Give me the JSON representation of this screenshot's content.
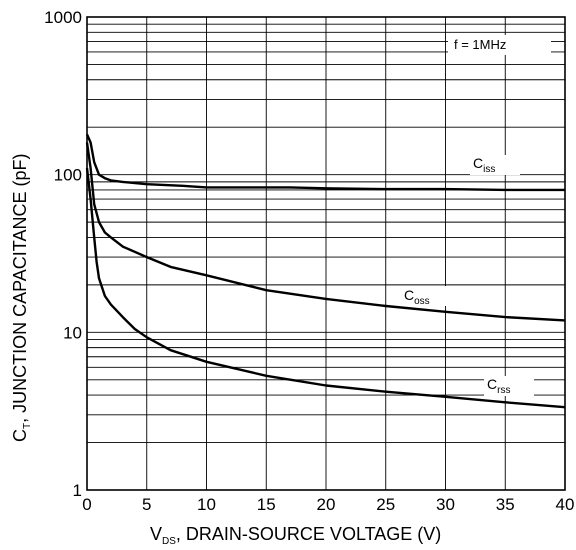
{
  "chart_data": {
    "type": "line",
    "ylabel_main": "C",
    "ylabel_sub": "T",
    "ylabel_rest": ", JUNCTION CAPACITANCE (pF)",
    "xlabel_main": "V",
    "xlabel_sub": "DS",
    "xlabel_rest": ", DRAIN-SOURCE VOLTAGE (V)",
    "annotation": "f = 1MHz",
    "xlim": [
      0,
      40
    ],
    "ylim": [
      1,
      1000
    ],
    "y_scale": "log",
    "grid": true,
    "x_ticks": [
      "0",
      "5",
      "10",
      "15",
      "20",
      "25",
      "30",
      "35",
      "40"
    ],
    "y_ticks": [
      "1",
      "10",
      "100",
      "1000"
    ],
    "series": [
      {
        "name_main": "C",
        "name_sub": "iss",
        "color": "#000000",
        "x": [
          0,
          0.3,
          0.6,
          1,
          1.5,
          2,
          3,
          5,
          8,
          10,
          15,
          17,
          20,
          25,
          30,
          35,
          40
        ],
        "y": [
          180,
          160,
          120,
          100,
          95,
          92,
          90,
          87,
          85,
          83,
          83,
          83,
          82,
          81,
          81,
          80,
          80
        ]
      },
      {
        "name_main": "C",
        "name_sub": "oss",
        "color": "#000000",
        "x": [
          0,
          0.3,
          0.6,
          1,
          1.5,
          2,
          3,
          5,
          7,
          10,
          15,
          20,
          25,
          30,
          35,
          40
        ],
        "y": [
          160,
          110,
          65,
          50,
          43,
          40,
          35,
          30,
          26,
          23,
          18.5,
          16.3,
          14.7,
          13.5,
          12.5,
          11.9
        ]
      },
      {
        "name_main": "C",
        "name_sub": "rss",
        "color": "#000000",
        "x": [
          0,
          0.3,
          0.6,
          0.8,
          1,
          1.5,
          2,
          3,
          4,
          5,
          7,
          10,
          15,
          20,
          25,
          30,
          35,
          40
        ],
        "y": [
          110,
          70,
          40,
          28,
          22,
          17,
          15,
          12.5,
          10.5,
          9.3,
          7.7,
          6.5,
          5.3,
          4.6,
          4.2,
          3.9,
          3.6,
          3.35
        ]
      }
    ]
  }
}
